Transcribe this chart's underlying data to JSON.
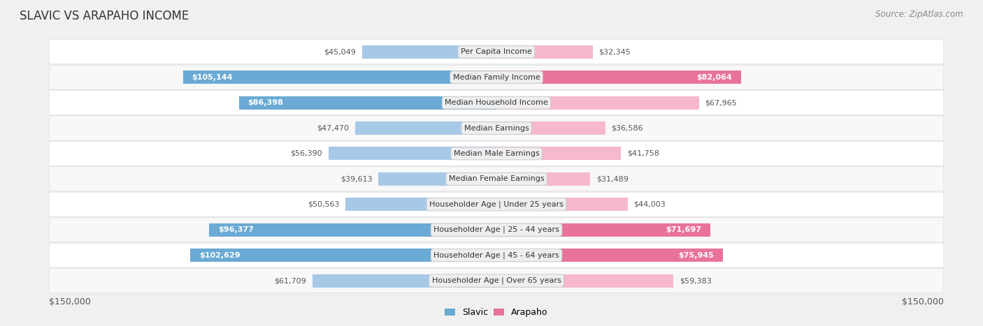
{
  "title": "SLAVIC VS ARAPAHO INCOME",
  "source": "Source: ZipAtlas.com",
  "categories": [
    "Per Capita Income",
    "Median Family Income",
    "Median Household Income",
    "Median Earnings",
    "Median Male Earnings",
    "Median Female Earnings",
    "Householder Age | Under 25 years",
    "Householder Age | 25 - 44 years",
    "Householder Age | 45 - 64 years",
    "Householder Age | Over 65 years"
  ],
  "slavic_values": [
    45049,
    105144,
    86398,
    47470,
    56390,
    39613,
    50563,
    96377,
    102629,
    61709
  ],
  "arapaho_values": [
    32345,
    82064,
    67965,
    36586,
    41758,
    31489,
    44003,
    71697,
    75945,
    59383
  ],
  "slavic_color_light": "#a8c8e8",
  "slavic_color_dark": "#6aaad4",
  "arapaho_color_light": "#f5b8cc",
  "arapaho_color_dark": "#e8739a",
  "max_value": 150000,
  "bg_color": "#f0f0f0",
  "row_bg_even": "#f8f8f8",
  "row_bg_odd": "#ffffff",
  "label_box_color": "#eeeeee",
  "title_fontsize": 12,
  "source_fontsize": 8.5,
  "bar_label_fontsize": 8,
  "category_fontsize": 8,
  "inside_label_threshold": 70000
}
